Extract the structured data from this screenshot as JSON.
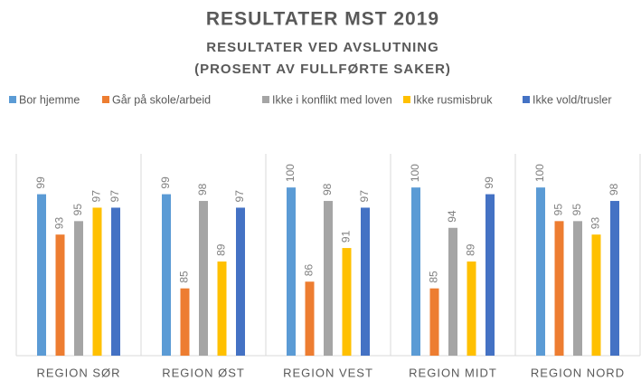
{
  "chart_data": {
    "type": "bar",
    "title": "RESULTATER MST 2019",
    "subtitle": [
      "RESULTATER VED AVSLUTNING",
      "(PROSENT AV FULLFØRTE SAKER)"
    ],
    "categories": [
      "REGION SØR",
      "REGION ØST",
      "REGION VEST",
      "REGION MIDT",
      "REGION NORD"
    ],
    "series": [
      {
        "name": "Bor hjemme",
        "color": "#5b9bd5",
        "values": [
          99,
          99,
          100,
          100,
          100
        ]
      },
      {
        "name": "Går på skole/arbeid",
        "color": "#ed7d31",
        "values": [
          93,
          85,
          86,
          85,
          95
        ]
      },
      {
        "name": "Ikke i konflikt med loven",
        "color": "#a5a5a5",
        "values": [
          95,
          98,
          98,
          94,
          95
        ]
      },
      {
        "name": "Ikke rusmisbruk",
        "color": "#ffc000",
        "values": [
          97,
          89,
          91,
          89,
          93
        ]
      },
      {
        "name": "Ikke vold/trusler",
        "color": "#4472c4",
        "values": [
          97,
          97,
          97,
          99,
          98
        ]
      }
    ],
    "ylim": [
      75,
      105
    ],
    "legend": "top"
  }
}
